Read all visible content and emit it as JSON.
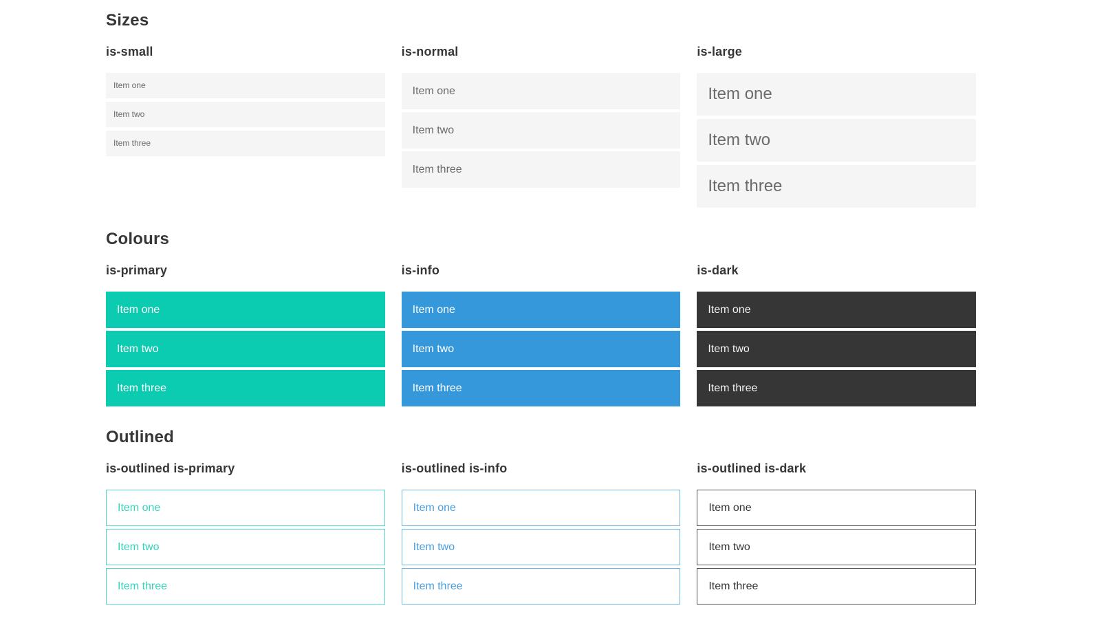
{
  "page": {
    "background": "#ffffff"
  },
  "colors": {
    "heading": "#363636",
    "item_bg_light": "#f5f5f5",
    "item_text_light": "#6b6b6b",
    "primary": "#0bccb1",
    "info": "#3498db",
    "dark": "#363636",
    "outlined_primary_text": "#35d3bc",
    "outlined_primary_border": "#54d8c5",
    "outlined_info_text": "#4a9fdf",
    "outlined_info_border": "#6cb2e4",
    "outlined_dark_text": "#363636",
    "outlined_dark_border": "#4f4f55"
  },
  "sections": [
    {
      "title": "Sizes",
      "columns": [
        {
          "label": "is-small",
          "items": [
            "Item one",
            "Item two",
            "Item three"
          ]
        },
        {
          "label": "is-normal",
          "items": [
            "Item one",
            "Item two",
            "Item three"
          ]
        },
        {
          "label": "is-large",
          "items": [
            "Item one",
            "Item two",
            "Item three"
          ]
        }
      ]
    },
    {
      "title": "Colours",
      "columns": [
        {
          "label": "is-primary",
          "items": [
            "Item one",
            "Item two",
            "Item three"
          ]
        },
        {
          "label": "is-info",
          "items": [
            "Item one",
            "Item two",
            "Item three"
          ]
        },
        {
          "label": "is-dark",
          "items": [
            "Item one",
            "Item two",
            "Item three"
          ]
        }
      ]
    },
    {
      "title": "Outlined",
      "columns": [
        {
          "label": "is-outlined is-primary",
          "items": [
            "Item one",
            "Item two",
            "Item three"
          ]
        },
        {
          "label": "is-outlined is-info",
          "items": [
            "Item one",
            "Item two",
            "Item three"
          ]
        },
        {
          "label": "is-outlined is-dark",
          "items": [
            "Item one",
            "Item two",
            "Item three"
          ]
        }
      ]
    }
  ]
}
